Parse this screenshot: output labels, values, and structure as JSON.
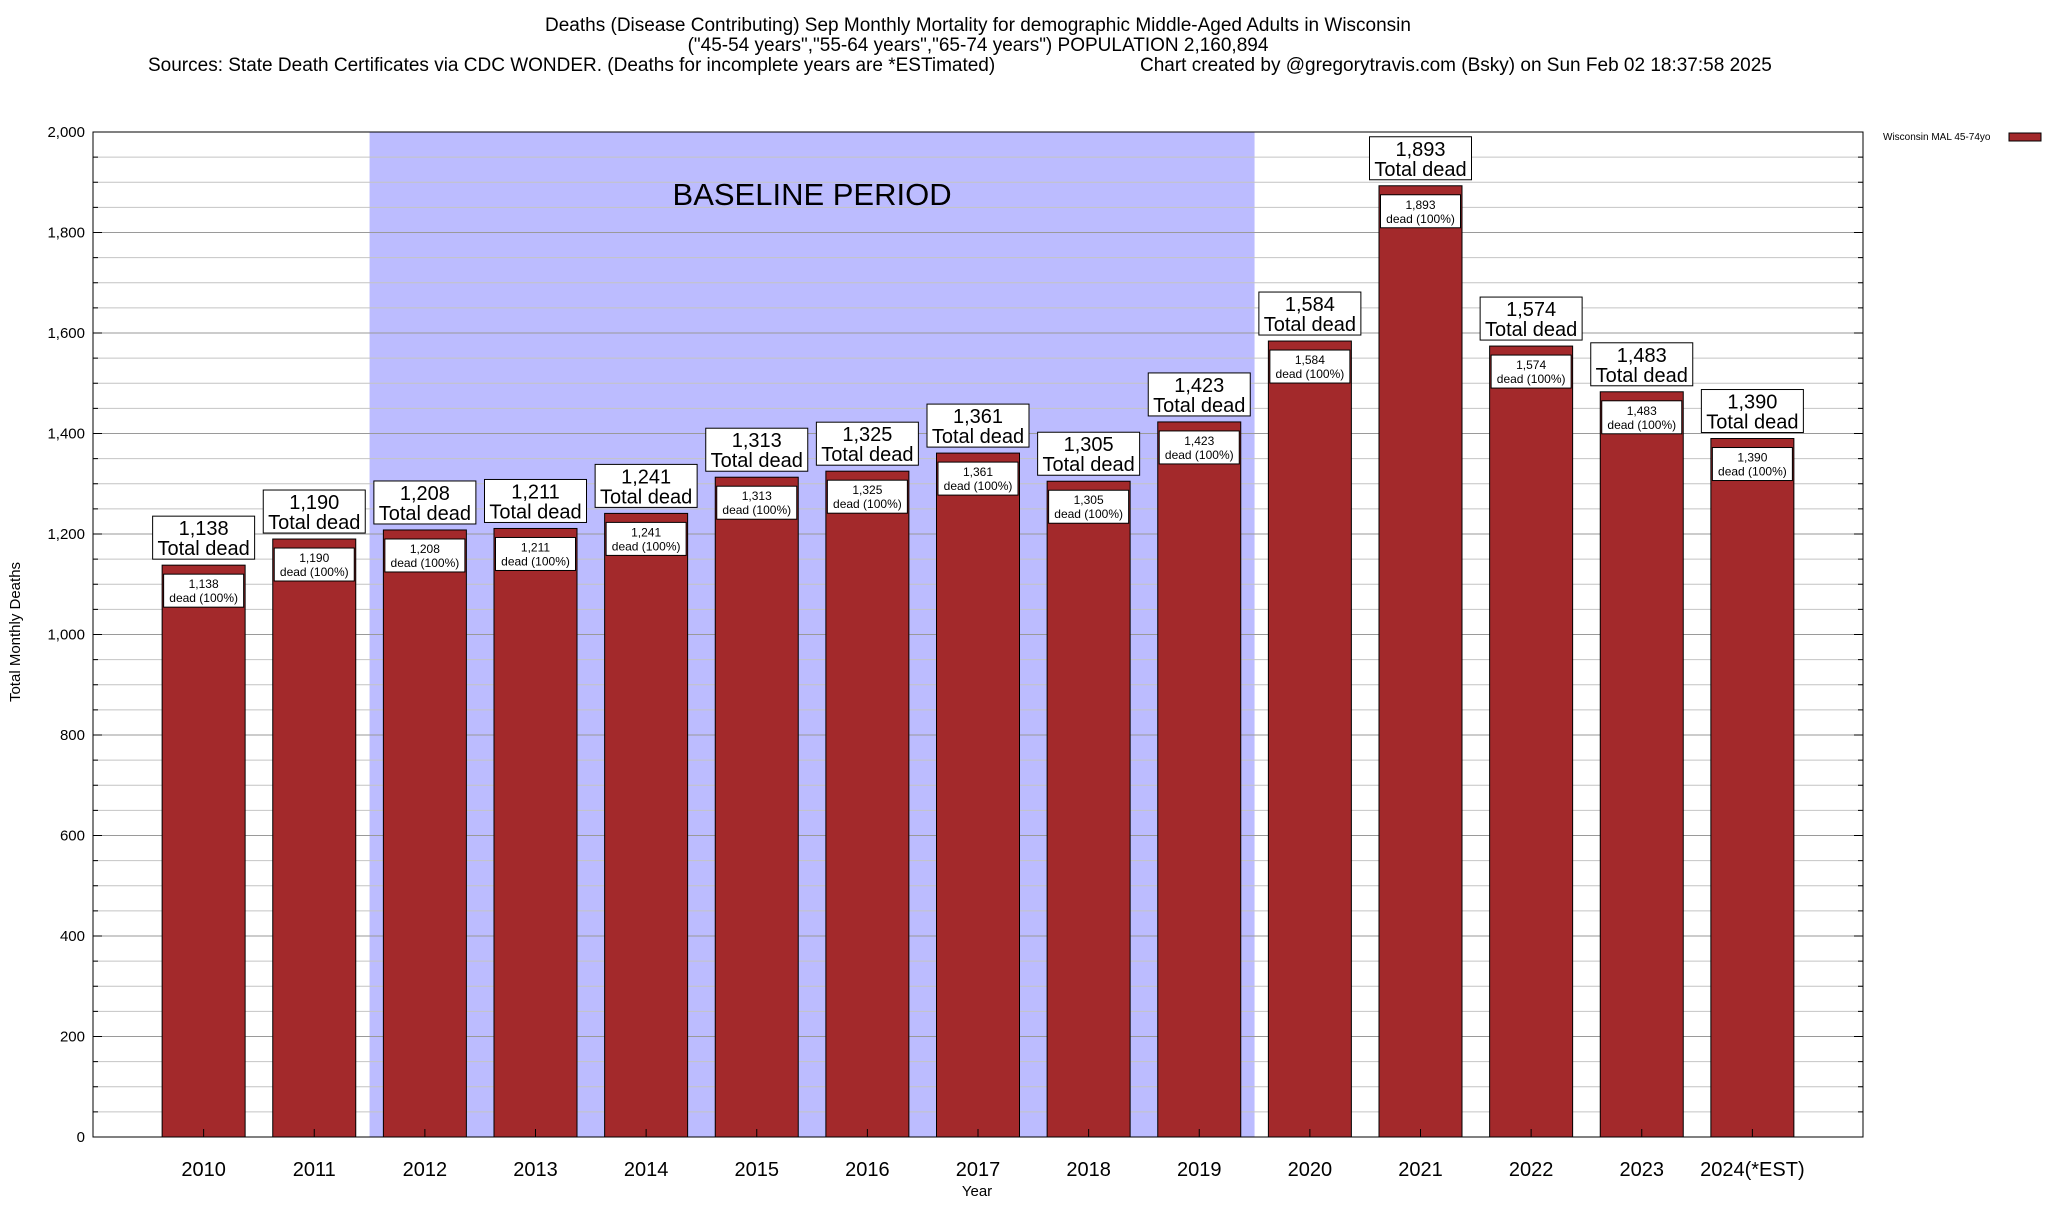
{
  "chart_data": {
    "type": "bar",
    "title": "Deaths (Disease Contributing) Sep Monthly Mortality for demographic Middle-Aged Adults in Wisconsin",
    "subtitle": "(\"45-54 years\",\"55-64 years\",\"65-74 years\") POPULATION 2,160,894",
    "sources": "Sources: State Death Certificates via CDC WONDER. (Deaths for incomplete years are *ESTimated)",
    "credit": "Chart created by @gregorytravis.com (Bsky) on Sun Feb 02 18:37:58 2025",
    "xlabel": "Year",
    "ylabel": "Total Monthly Deaths",
    "ylim": [
      0,
      2000
    ],
    "yticks": [
      0,
      200,
      400,
      600,
      800,
      1000,
      1200,
      1400,
      1600,
      1800,
      2000
    ],
    "ytick_labels": [
      "0",
      "200",
      "400",
      "600",
      "800",
      "1,000",
      "1,200",
      "1,400",
      "1,600",
      "1,800",
      "2,000"
    ],
    "grid": true,
    "legend": {
      "placement": "top-right",
      "label": "Wisconsin MAL 45-74yo",
      "color": "#a3292b"
    },
    "bar_color": "#a3292b",
    "baseline": {
      "label": "BASELINE PERIOD",
      "start": "2012",
      "end": "2019",
      "color": "#bcbcff"
    },
    "total_suffix": "Total dead",
    "inner_suffix": "dead (100%)",
    "categories": [
      "2010",
      "2011",
      "2012",
      "2013",
      "2014",
      "2015",
      "2016",
      "2017",
      "2018",
      "2019",
      "2020",
      "2021",
      "2022",
      "2023",
      "2024(*EST)"
    ],
    "values": [
      1138,
      1190,
      1208,
      1211,
      1241,
      1313,
      1325,
      1361,
      1305,
      1423,
      1584,
      1893,
      1574,
      1483,
      1390
    ],
    "value_labels": [
      "1,138",
      "1,190",
      "1,208",
      "1,211",
      "1,241",
      "1,313",
      "1,325",
      "1,361",
      "1,305",
      "1,423",
      "1,584",
      "1,893",
      "1,574",
      "1,483",
      "1,390"
    ]
  }
}
